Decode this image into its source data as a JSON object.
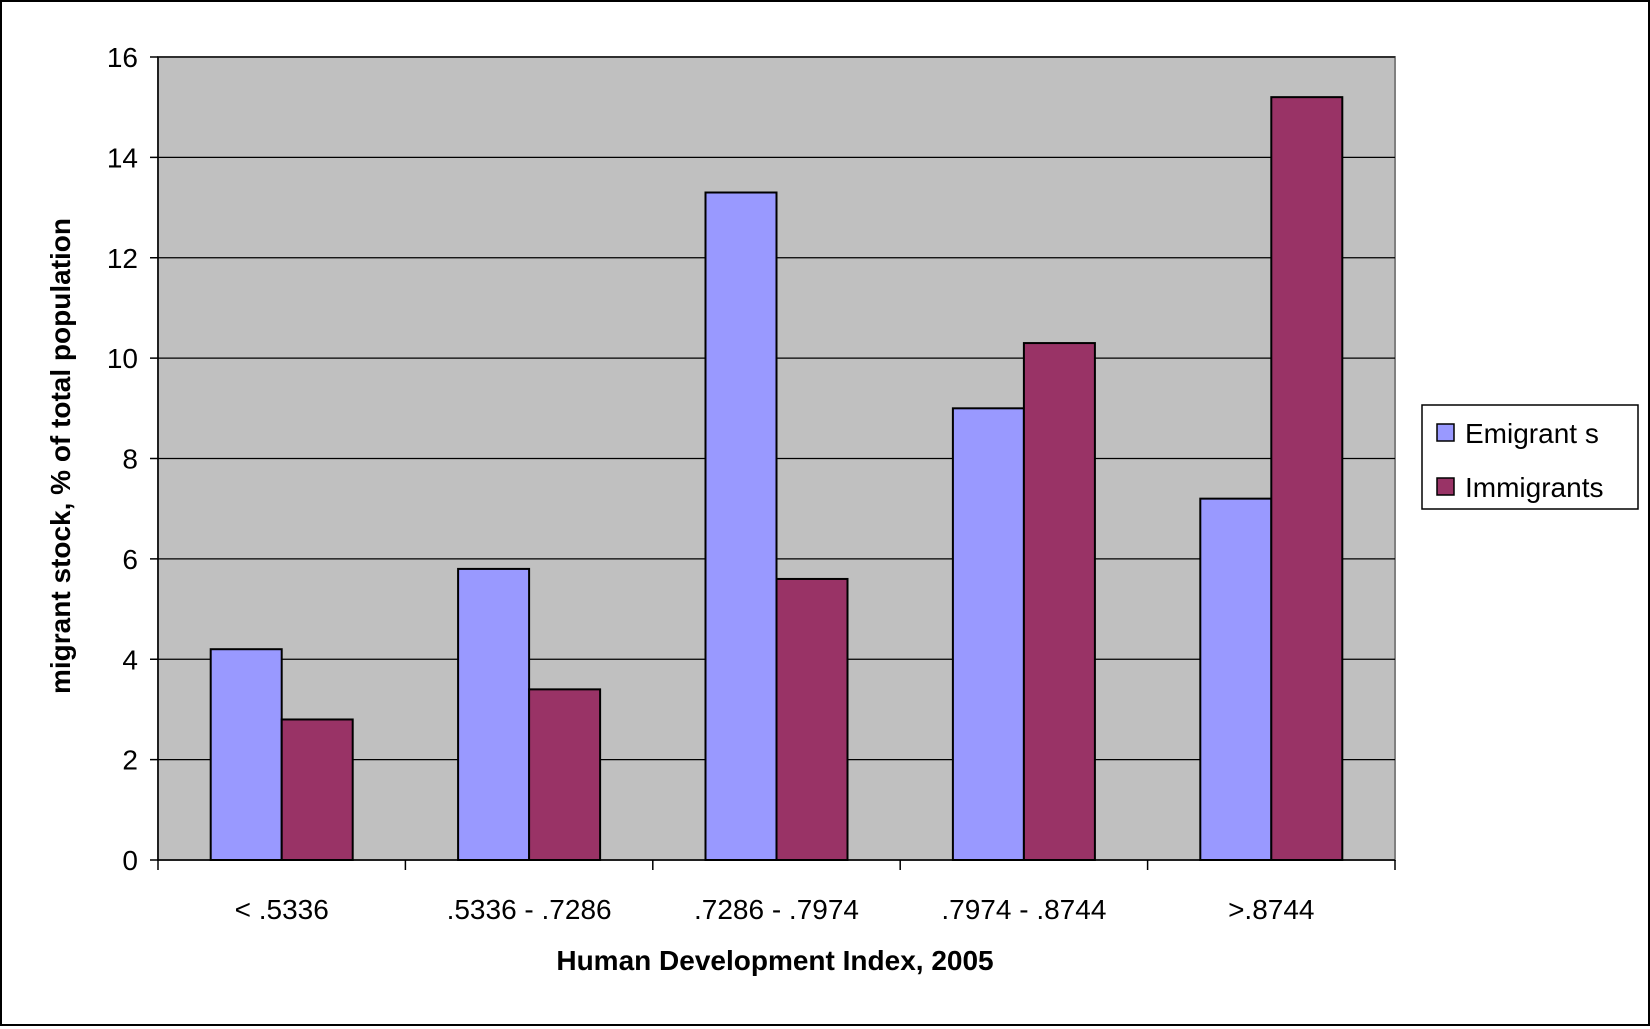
{
  "chart_data": {
    "type": "bar",
    "title": "",
    "xlabel": "Human Development Index, 2005",
    "ylabel": "migrant stock, % of total population",
    "categories": [
      "< .5336",
      ".5336  - .7286",
      ".7286 - .7974",
      ".7974 - .8744",
      ">.8744"
    ],
    "series": [
      {
        "name": "Emigrant s",
        "values": [
          4.2,
          5.8,
          13.3,
          9.0,
          7.2
        ],
        "color": "#9999ff"
      },
      {
        "name": "Immigrants",
        "values": [
          2.8,
          3.4,
          5.6,
          10.3,
          15.2
        ],
        "color": "#993366"
      }
    ],
    "yticks": [
      "0",
      "2",
      "4",
      "6",
      "8",
      "10",
      "12",
      "14",
      "16"
    ],
    "ylim": [
      0,
      16
    ],
    "grid": true,
    "legend_position": "right",
    "plot_background": "#c0c0c0"
  }
}
